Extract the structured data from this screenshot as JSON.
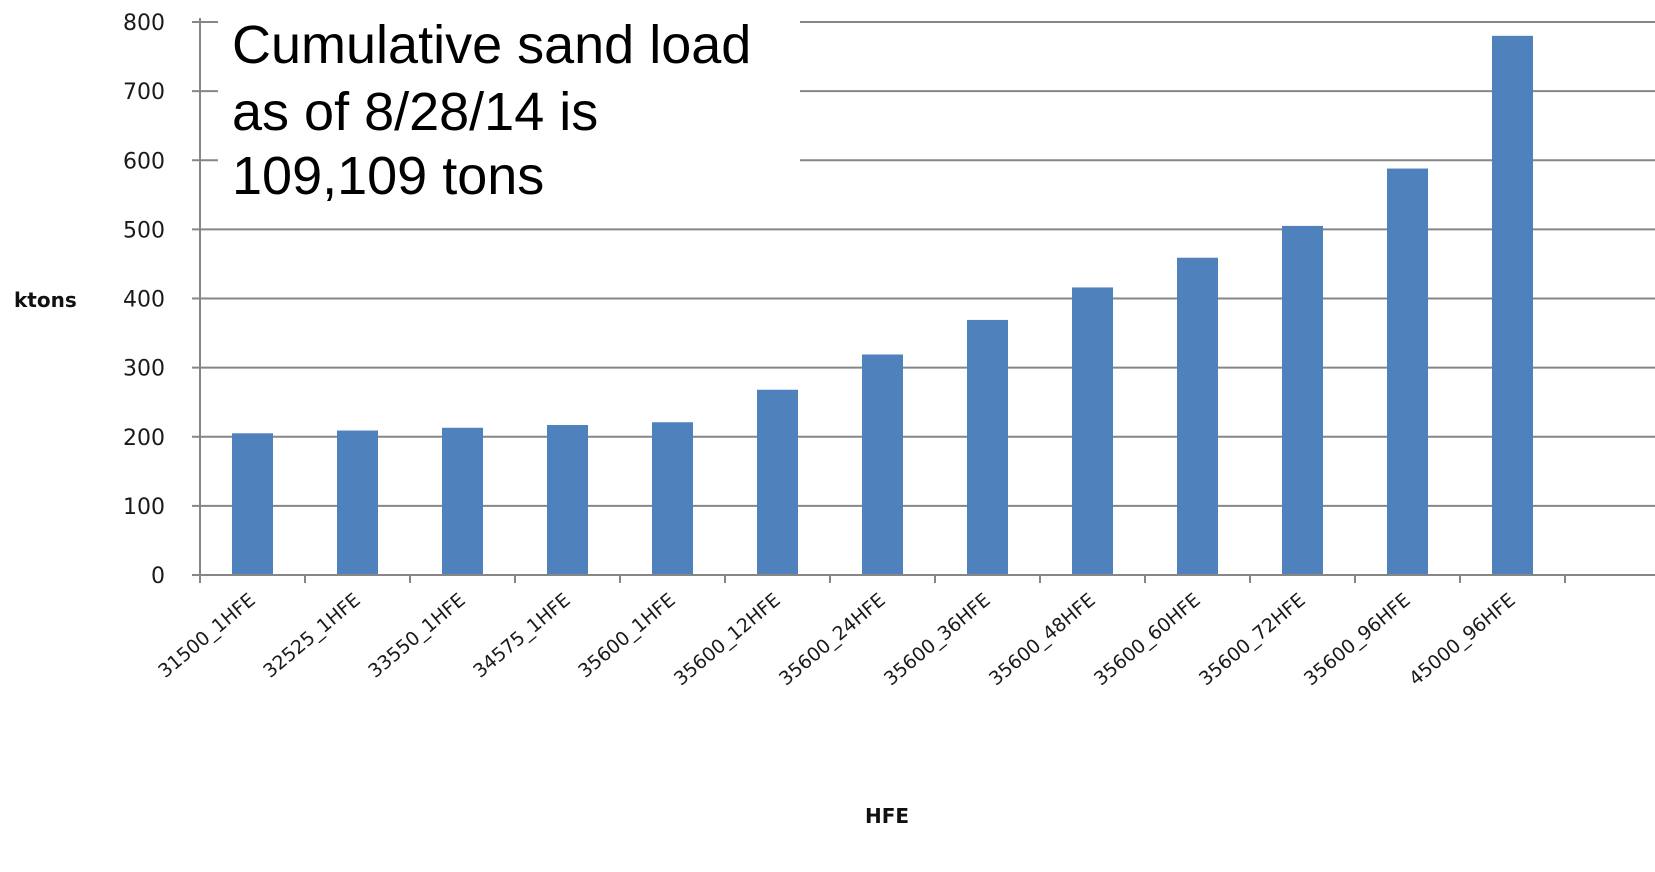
{
  "chart_data": {
    "type": "bar",
    "categories": [
      "31500_1HFE",
      "32525_1HFE",
      "33550_1HFE",
      "34575_1HFE",
      "35600_1HFE",
      "35600_12HFE",
      "35600_24HFE",
      "35600_36HFE",
      "35600_48HFE",
      "35600_60HFE",
      "35600_72HFE",
      "35600_96HFE",
      "45000_96HFE"
    ],
    "values": [
      205,
      209,
      213,
      217,
      221,
      268,
      319,
      369,
      416,
      459,
      505,
      588,
      780
    ],
    "xlabel": "HFE",
    "ylabel": "ktons",
    "ylim": [
      0,
      800
    ],
    "yticks": [
      "0",
      "100",
      "200",
      "300",
      "400",
      "500",
      "600",
      "700",
      "800"
    ],
    "grid": true,
    "bar_color": "#4f81bd",
    "annotation": [
      "Cumulative sand load",
      "as of 8/28/14 is",
      "109,109 tons"
    ]
  }
}
